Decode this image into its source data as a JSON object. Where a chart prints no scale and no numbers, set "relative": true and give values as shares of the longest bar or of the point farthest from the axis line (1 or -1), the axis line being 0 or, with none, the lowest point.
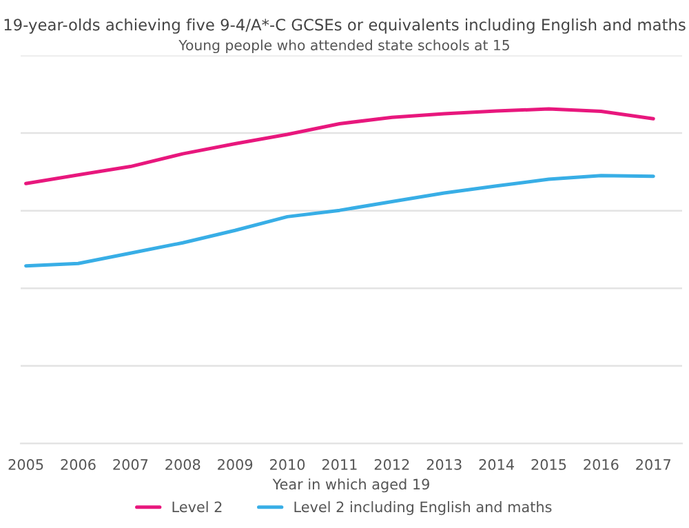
{
  "chart_data": {
    "type": "line",
    "title": "19-year-olds achieving five 9-4/A*-C GCSEs or equivalents including English and maths",
    "subtitle": "Young people who attended state schools at 15",
    "xlabel": "Year in which aged 19",
    "categories": [
      "2005",
      "2006",
      "2007",
      "2008",
      "2009",
      "2010",
      "2011",
      "2012",
      "2013",
      "2014",
      "2015",
      "2016",
      "2017"
    ],
    "relative": true,
    "series": [
      {
        "name": "Level 2",
        "color": "#e8177d",
        "values": [
          0.777,
          0.803,
          0.828,
          0.866,
          0.896,
          0.924,
          0.956,
          0.975,
          0.986,
          0.994,
          1,
          0.993,
          0.971
        ]
      },
      {
        "name": "Level 2 including English and maths",
        "color": "#38aee6",
        "values": [
          0.531,
          0.538,
          0.569,
          0.6,
          0.637,
          0.678,
          0.697,
          0.723,
          0.749,
          0.77,
          0.79,
          0.801,
          0.799
        ]
      }
    ],
    "grid": "y",
    "legend": "bottom",
    "marker": "none",
    "line_style": "solid"
  }
}
